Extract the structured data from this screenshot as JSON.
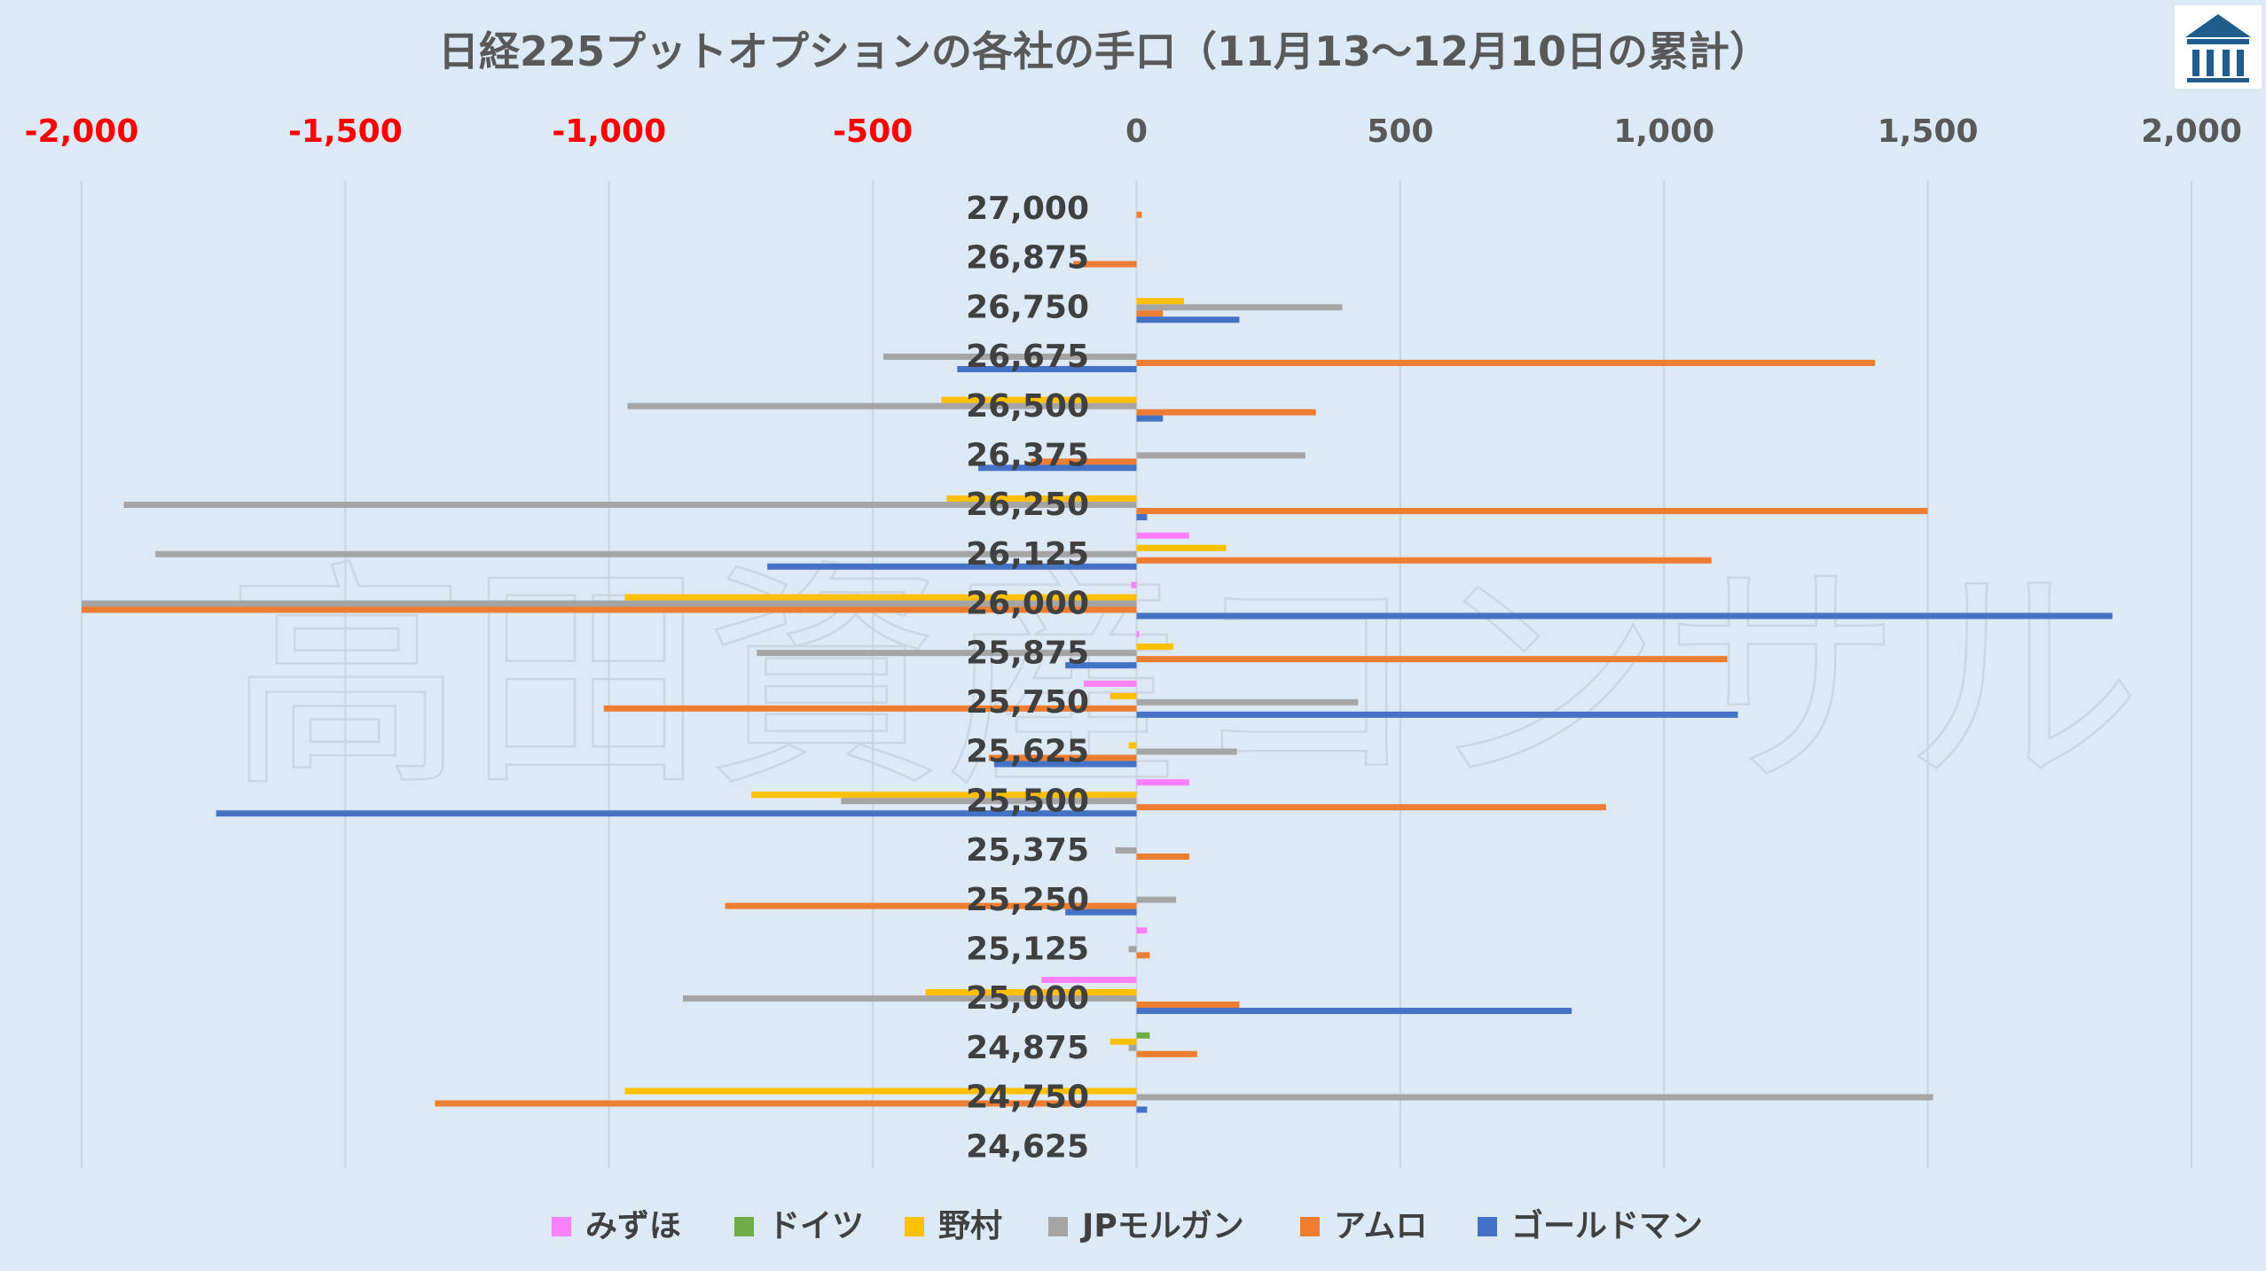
{
  "chart_data": {
    "type": "bar",
    "orientation": "horizontal",
    "title": "日経225プットオプションの各社の手口（11月13〜12月10日の累計）",
    "watermark": "高田資産コンサル",
    "xlim": [
      -2000,
      2000
    ],
    "xticks": [
      -2000,
      -1500,
      -1000,
      -500,
      0,
      500,
      1000,
      1500,
      2000
    ],
    "xtick_labels": [
      "-2,000",
      "-1,500",
      "-1,000",
      "-500",
      "0",
      "500",
      "1,000",
      "1,500",
      "2,000"
    ],
    "negative_tick_color": "#ff0000",
    "positive_tick_color": "#595959",
    "grid": true,
    "legend_position": "bottom",
    "categories": [
      "27,000",
      "26,875",
      "26,750",
      "26,675",
      "26,500",
      "26,375",
      "26,250",
      "26,125",
      "26,000",
      "25,875",
      "25,750",
      "25,625",
      "25,500",
      "25,375",
      "25,250",
      "25,125",
      "25,000",
      "24,875",
      "24,750",
      "24,625"
    ],
    "series": [
      {
        "name": "みずほ",
        "color": "#ff80ff",
        "values": [
          0,
          0,
          0,
          0,
          0,
          0,
          0,
          100,
          -10,
          5,
          -100,
          0,
          100,
          0,
          0,
          20,
          -180,
          0,
          0,
          0
        ]
      },
      {
        "name": "ドイツ",
        "color": "#70ad47",
        "values": [
          0,
          0,
          0,
          0,
          0,
          0,
          0,
          0,
          0,
          0,
          0,
          0,
          0,
          0,
          0,
          0,
          0,
          25,
          0,
          0
        ]
      },
      {
        "name": "野村",
        "color": "#ffc000",
        "values": [
          0,
          0,
          90,
          0,
          -370,
          0,
          -360,
          170,
          -970,
          70,
          -50,
          -15,
          -730,
          0,
          0,
          0,
          -400,
          -50,
          -970,
          0
        ]
      },
      {
        "name": "JPモルガン",
        "color": "#a5a5a5",
        "values": [
          0,
          0,
          390,
          -480,
          -965,
          320,
          -1920,
          -1860,
          -2000,
          -720,
          420,
          190,
          -560,
          -40,
          75,
          -15,
          -860,
          -15,
          1510,
          0
        ]
      },
      {
        "name": "アムロ",
        "color": "#ed7d31",
        "values": [
          10,
          -120,
          50,
          1400,
          340,
          -200,
          1500,
          1090,
          -2000,
          1120,
          -1010,
          -280,
          890,
          100,
          -780,
          25,
          195,
          115,
          -1330,
          0
        ]
      },
      {
        "name": "ゴールドマン",
        "color": "#4472c4",
        "values": [
          0,
          0,
          195,
          -340,
          50,
          -300,
          20,
          -700,
          1850,
          -135,
          1140,
          -270,
          -1745,
          0,
          -135,
          0,
          825,
          0,
          20,
          0
        ]
      }
    ]
  }
}
